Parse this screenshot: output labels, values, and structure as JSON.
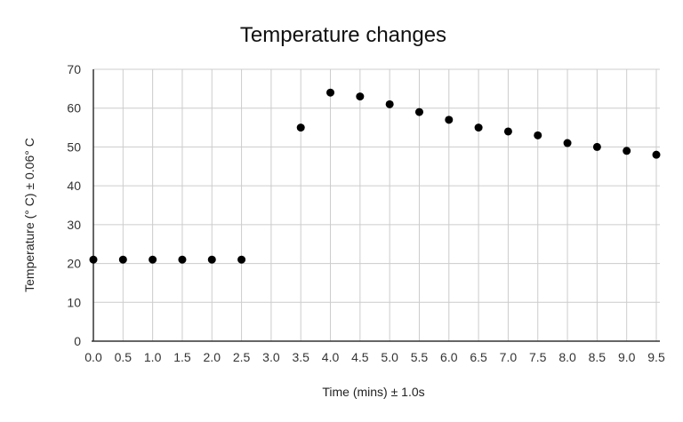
{
  "chart_data": {
    "type": "scatter",
    "title": "Temperature changes",
    "xlabel": "Time (mins) ± 1.0s",
    "ylabel": "Temperature (° C) ± 0.06° C",
    "xlim": [
      0,
      9.5
    ],
    "ylim": [
      0,
      70
    ],
    "x_ticks": [
      "0.0",
      "0.5",
      "1.0",
      "1.5",
      "2.0",
      "2.5",
      "3.0",
      "3.5",
      "4.0",
      "4.5",
      "5.0",
      "5.5",
      "6.0",
      "6.5",
      "7.0",
      "7.5",
      "8.0",
      "8.5",
      "9.0",
      "9.5"
    ],
    "y_ticks": [
      "0",
      "10",
      "20",
      "30",
      "40",
      "50",
      "60",
      "70"
    ],
    "grid": true,
    "legend": "none",
    "marker_color": "#000000",
    "series": [
      {
        "x": [
          0.0,
          0.5,
          1.0,
          1.5,
          2.0,
          2.5,
          3.5,
          4.0,
          4.5,
          5.0,
          5.5,
          6.0,
          6.5,
          7.0,
          7.5,
          8.0,
          8.5,
          9.0,
          9.5
        ],
        "y": [
          21,
          21,
          21,
          21,
          21,
          21,
          55,
          64,
          63,
          61,
          59,
          57,
          55,
          54,
          53,
          51,
          50,
          49,
          48
        ]
      }
    ]
  }
}
